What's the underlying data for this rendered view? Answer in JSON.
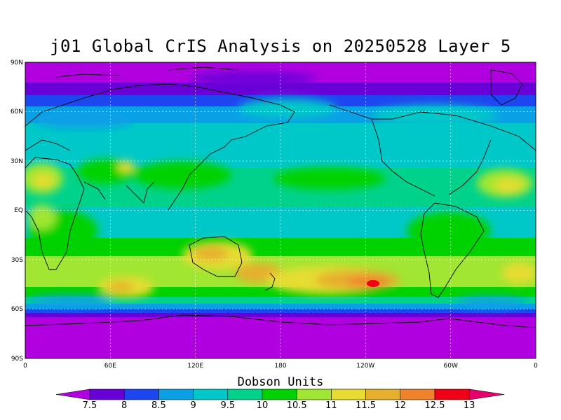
{
  "title": "j01 Global CrIS Analysis on 20250528 Layer 5",
  "map": {
    "lat_labels": [
      "90N",
      "60N",
      "30N",
      "EQ",
      "30S",
      "60S",
      "90S"
    ],
    "lon_labels": [
      "0",
      "60E",
      "120E",
      "180",
      "120W",
      "60W",
      "0"
    ]
  },
  "colorbar": {
    "title": "Dobson Units",
    "labels": [
      "7.5",
      "8",
      "8.5",
      "9",
      "9.5",
      "10",
      "10.5",
      "11",
      "11.5",
      "12",
      "12.5",
      "13"
    ],
    "colors": [
      "#b000e0",
      "#6a00d8",
      "#1e46f0",
      "#0aa0e6",
      "#00c8c8",
      "#00d28c",
      "#00d200",
      "#a0e632",
      "#e6dc32",
      "#e6af2d",
      "#f0822d",
      "#f00014",
      "#e6006e"
    ]
  }
}
